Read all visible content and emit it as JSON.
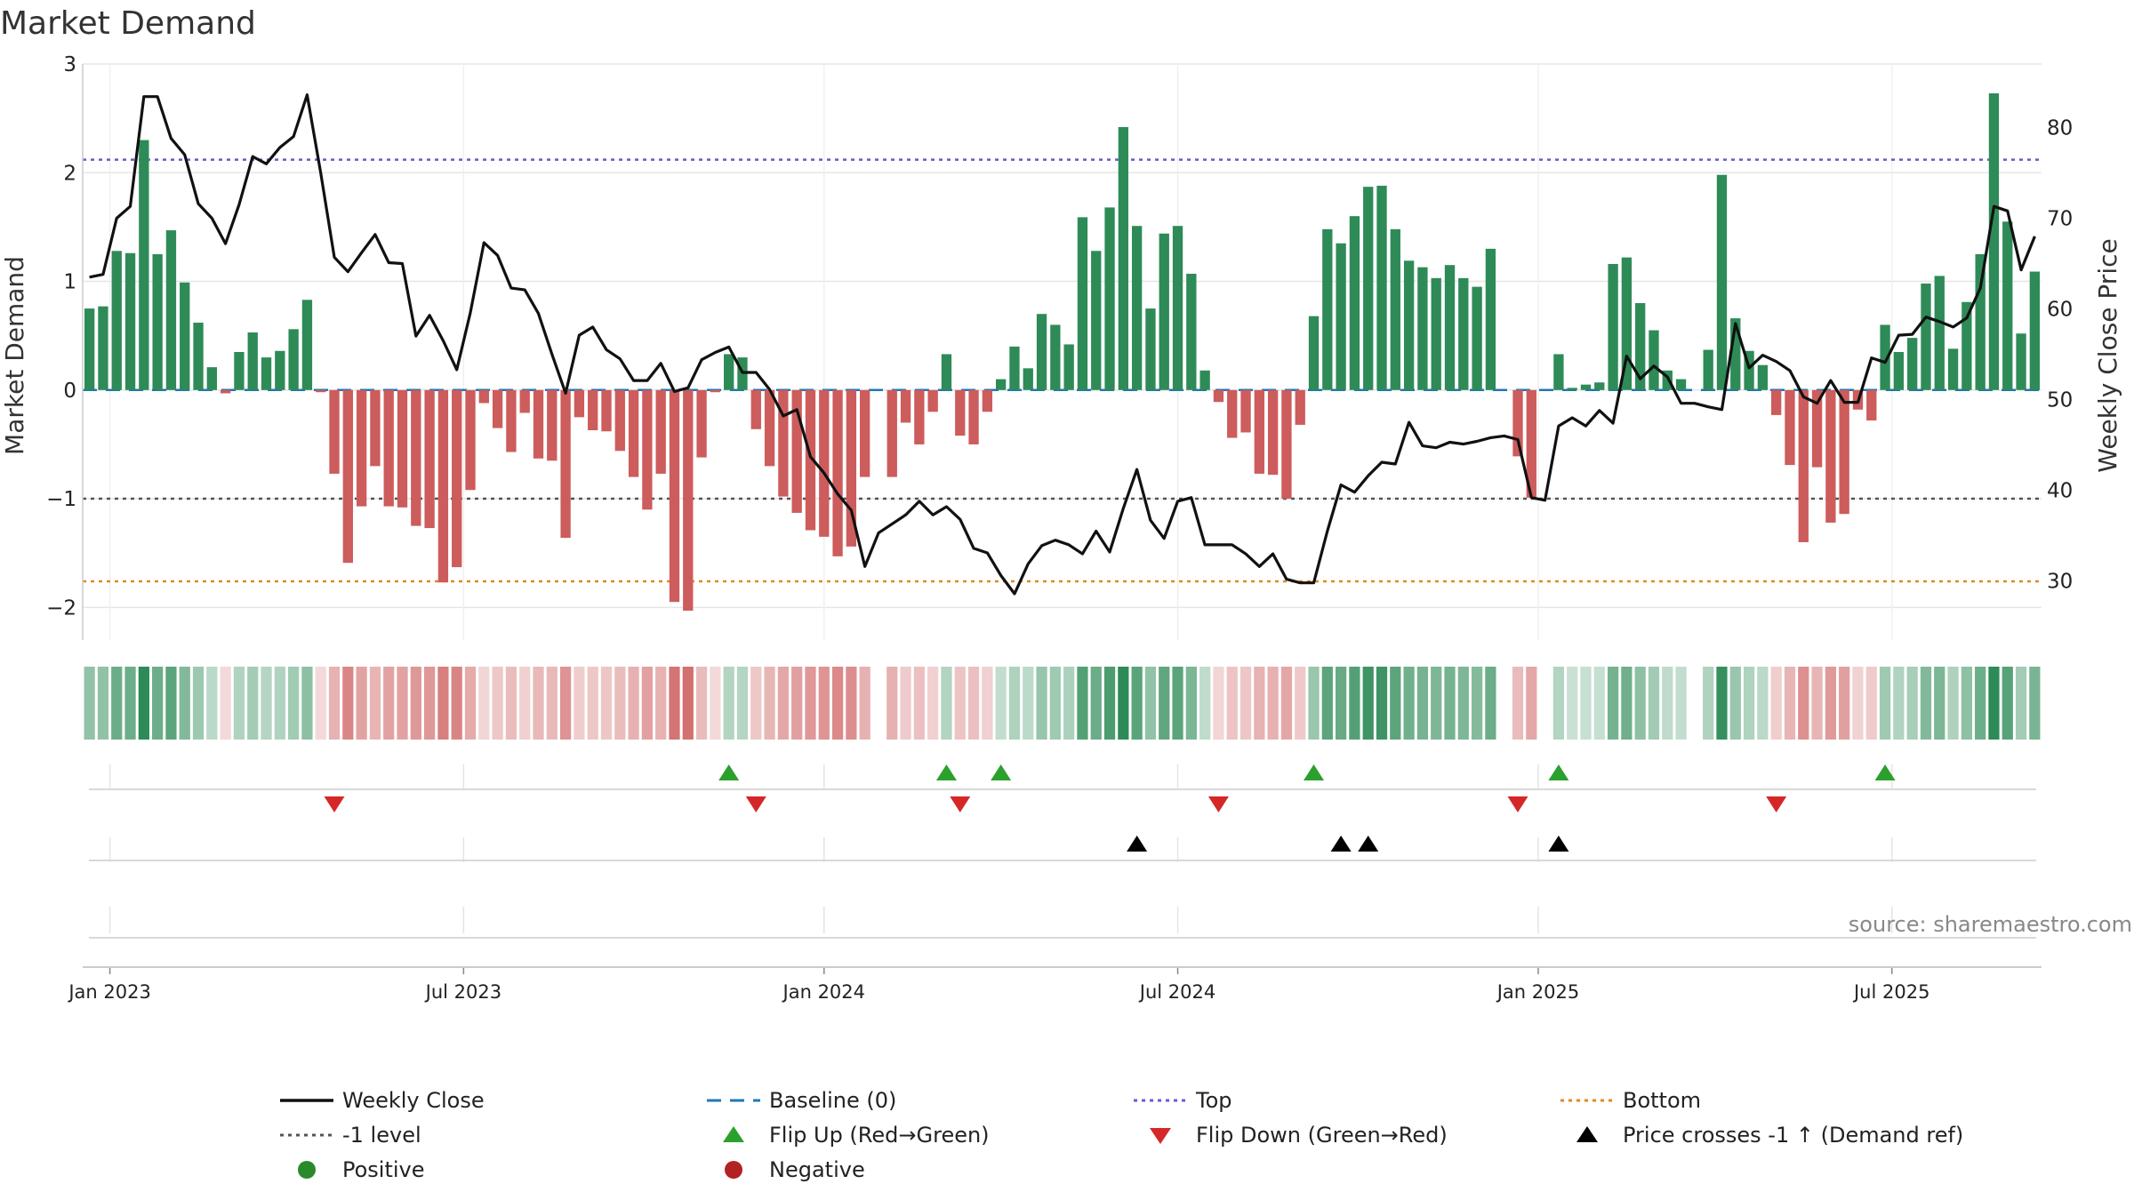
{
  "chart_data": {
    "type": "bar",
    "title": "Market Demand",
    "ylabel": "Market Demand",
    "y2label": "Weekly Close Price",
    "source": "source: sharemaestro.com",
    "ylim": [
      -2.3,
      3
    ],
    "y2lim": [
      23.5,
      87
    ],
    "yticks": [
      {
        "value": 3,
        "label": "3"
      },
      {
        "value": 2,
        "label": "2"
      },
      {
        "value": 1,
        "label": "1"
      },
      {
        "value": 0,
        "label": "0"
      },
      {
        "value": -1,
        "label": "−1"
      },
      {
        "value": -2,
        "label": "−2"
      }
    ],
    "y2ticks": [
      {
        "value": 80,
        "label": "80"
      },
      {
        "value": 70,
        "label": "70"
      },
      {
        "value": 60,
        "label": "60"
      },
      {
        "value": 50,
        "label": "50"
      },
      {
        "value": 40,
        "label": "40"
      },
      {
        "value": 30,
        "label": "30"
      }
    ],
    "xticks": [
      {
        "week": 2,
        "label": "Jan 2023"
      },
      {
        "week": 28,
        "label": "Jul 2023"
      },
      {
        "week": 54.5,
        "label": "Jan 2024"
      },
      {
        "week": 80.5,
        "label": "Jul 2024"
      },
      {
        "week": 107,
        "label": "Jan 2025"
      },
      {
        "week": 133,
        "label": "Jul 2025"
      }
    ],
    "reference_lines": [
      {
        "name": "Top",
        "value": 2.12,
        "color": "#6a5acd"
      },
      {
        "name": "-1 level",
        "value": -1,
        "color": "#555555"
      },
      {
        "name": "Bottom",
        "value": -1.76,
        "color": "#e08a1e"
      },
      {
        "name": "Baseline (0)",
        "value": 0,
        "color": "#1f77b4"
      }
    ],
    "demand": [
      0.75,
      0.77,
      1.28,
      1.26,
      2.3,
      1.25,
      1.47,
      0.99,
      0.62,
      0.21,
      -0.03,
      0.35,
      0.53,
      0.3,
      0.36,
      0.56,
      0.83,
      -0.02,
      -0.77,
      -1.59,
      -1.07,
      -0.7,
      -1.07,
      -1.08,
      -1.25,
      -1.27,
      -1.77,
      -1.63,
      -0.92,
      -0.12,
      -0.35,
      -0.57,
      -0.21,
      -0.63,
      -0.65,
      -1.36,
      -0.25,
      -0.37,
      -0.38,
      -0.56,
      -0.8,
      -1.1,
      -0.77,
      -1.95,
      -2.03,
      -0.62,
      -0.02,
      0.33,
      0.3,
      -0.36,
      -0.7,
      -0.98,
      -1.13,
      -1.29,
      -1.35,
      -1.53,
      -1.44,
      -0.8,
      0,
      -0.8,
      -0.3,
      -0.5,
      -0.2,
      0.33,
      -0.42,
      -0.5,
      -0.2,
      0.1,
      0.4,
      0.2,
      0.7,
      0.6,
      0.42,
      1.59,
      1.28,
      1.68,
      2.42,
      1.51,
      0.75,
      1.44,
      1.51,
      1.07,
      0.18,
      -0.11,
      -0.44,
      -0.39,
      -0.77,
      -0.78,
      -1.0,
      -0.32,
      0.68,
      1.48,
      1.35,
      1.6,
      1.87,
      1.88,
      1.48,
      1.19,
      1.13,
      1.03,
      1.15,
      1.03,
      0.95,
      1.3,
      0.0,
      -0.61,
      -0.99,
      0.0,
      0.33,
      0.02,
      0.05,
      0.07,
      1.16,
      1.22,
      0.8,
      0.55,
      0.18,
      0.1,
      0.0,
      0.37,
      1.98,
      0.66,
      0.36,
      0.23,
      -0.23,
      -0.69,
      -1.4,
      -0.71,
      -1.22,
      -1.14,
      -0.18,
      -0.28,
      0.6,
      0.35,
      0.48,
      0.98,
      1.05,
      0.38,
      0.81,
      1.25,
      2.73,
      1.55,
      0.52,
      1.09
    ],
    "close": [
      63.5,
      63.8,
      70,
      71.3,
      83.4,
      83.4,
      78.8,
      77,
      71.6,
      70,
      67.2,
      71.5,
      76.8,
      76,
      77.8,
      79,
      83.6,
      75,
      65.7,
      64.1,
      66.2,
      68.2,
      65.1,
      65,
      57,
      59.3,
      56.5,
      53.3,
      59.6,
      67.3,
      65.9,
      62.3,
      62.1,
      59.5,
      55,
      50.7,
      57.1,
      58,
      55.5,
      54.5,
      52.1,
      52.1,
      54,
      50.9,
      51.3,
      54.4,
      55.2,
      55.8,
      53,
      53,
      51.1,
      48.2,
      48.9,
      43.7,
      41.9,
      39.6,
      37.8,
      31.6,
      35.3,
      36.3,
      37.3,
      38.8,
      37.3,
      38.2,
      36.8,
      33.6,
      33.1,
      30.6,
      28.6,
      31.9,
      33.9,
      34.5,
      34.0,
      33.0,
      35.5,
      33.2,
      38.0,
      42.3,
      36.7,
      34.7,
      38.8,
      39.2,
      34.0,
      34.0,
      34.0,
      33.0,
      31.6,
      33.0,
      30.2,
      29.8,
      29.8,
      35.5,
      40.6,
      39.8,
      41.6,
      43.1,
      42.9,
      47.5,
      44.9,
      44.7,
      45.3,
      45.1,
      45.4,
      45.8,
      46.0,
      45.6,
      39.2,
      38.9,
      47.1,
      48,
      47.1,
      48.8,
      47.4,
      54.8,
      52.3,
      53.7,
      52.5,
      49.6,
      49.6,
      49.2,
      48.9,
      58.4,
      53.5,
      54.9,
      54.2,
      53.2,
      50.3,
      49.6,
      52.1,
      49.7,
      49.7,
      54.6,
      54.1,
      57.1,
      57.2,
      59.1,
      58.6,
      58,
      59,
      62.3,
      71.3,
      70.8,
      64.3,
      68
    ]
  },
  "legend": {
    "items": [
      {
        "label": "Weekly Close",
        "symbol": "line",
        "color": "#111111"
      },
      {
        "label": "Baseline (0)",
        "symbol": "dashed",
        "color": "#1f77b4"
      },
      {
        "label": "Top",
        "symbol": "dotted",
        "color": "#6a5acd"
      },
      {
        "label": "Bottom",
        "symbol": "dotted",
        "color": "#e08a1e"
      },
      {
        "label": "-1 level",
        "symbol": "dotted",
        "color": "#555555"
      },
      {
        "label": "Flip Up (Red→Green)",
        "symbol": "triangle-up",
        "color": "#2ca02c"
      },
      {
        "label": "Flip Down (Green→Red)",
        "symbol": "triangle-down",
        "color": "#d62728"
      },
      {
        "label": "Price crosses -1 ↑ (Demand ref)",
        "symbol": "triangle-up",
        "color": "#000000"
      },
      {
        "label": "Positive",
        "symbol": "circle",
        "color": "#2a8a2a"
      },
      {
        "label": "Negative",
        "symbol": "circle",
        "color": "#b22222"
      }
    ]
  },
  "colors": {
    "positive_bar": "#2e8b57",
    "negative_bar": "#cd5c5c",
    "close_line": "#111111",
    "flip_up": "#2ca02c",
    "flip_down": "#d62728",
    "cross_marker": "#000000",
    "grid": "#e6e6e6"
  }
}
